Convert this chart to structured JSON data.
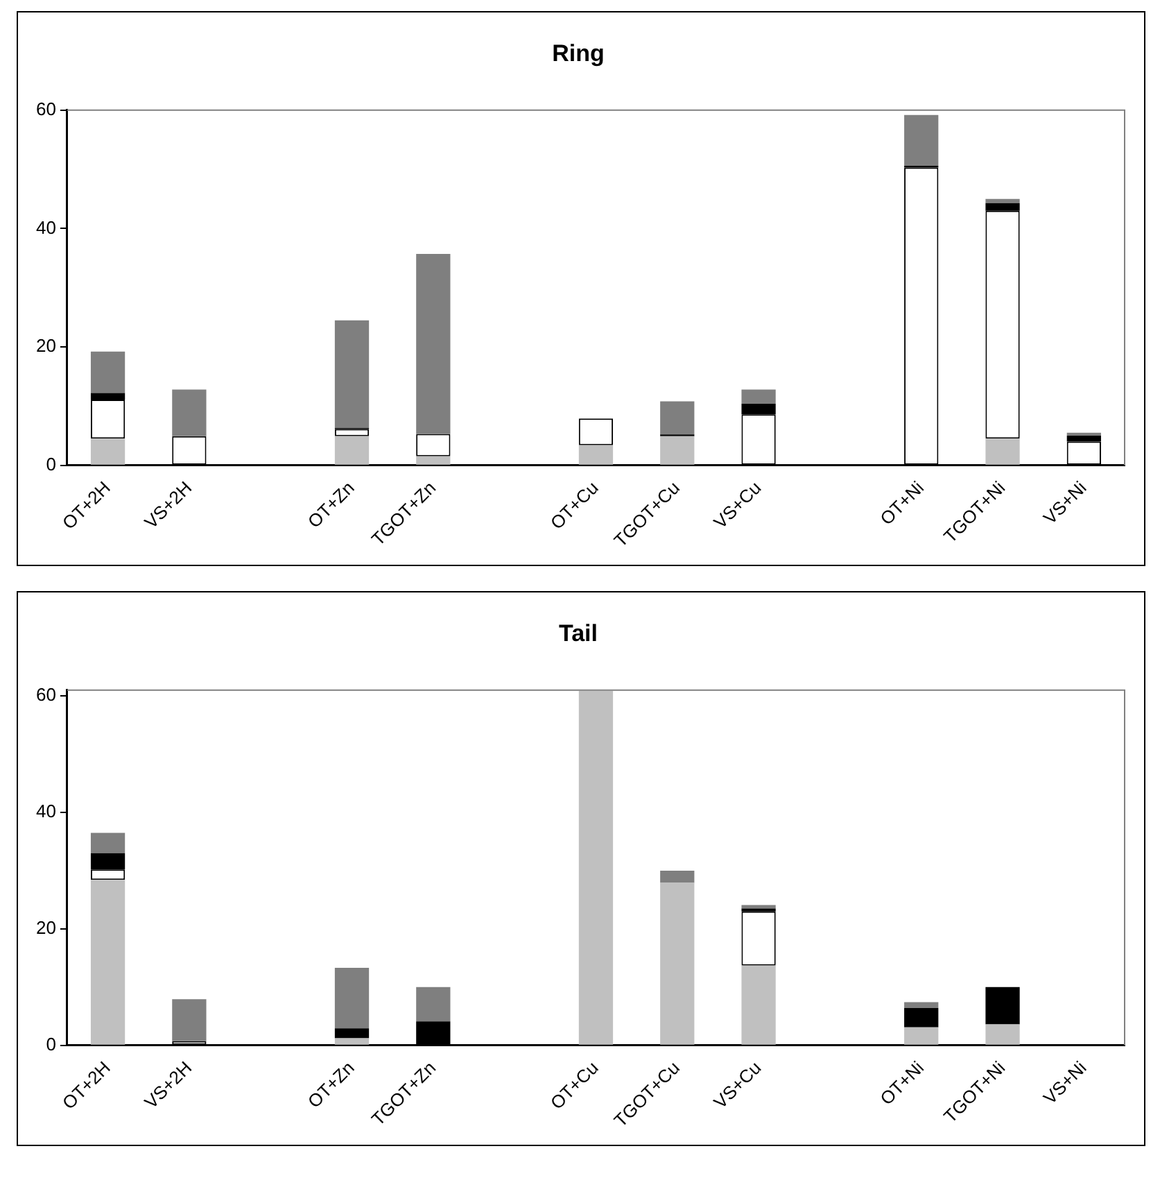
{
  "chart_data": [
    {
      "type": "bar",
      "title": "Ring",
      "stacked": true,
      "grid": false,
      "legend": false,
      "categories": [
        "OT+2H",
        "VS+2H",
        null,
        "OT+Zn",
        "TGOT+Zn",
        null,
        "OT+Cu",
        "TGOT+Cu",
        "VS+Cu",
        null,
        "OT+Ni",
        "TGOT+Ni",
        "VS+Ni"
      ],
      "ylim": [
        0,
        60
      ],
      "yticks": [
        0,
        20,
        40,
        60
      ],
      "series": [
        {
          "color": "#c0c0c0",
          "values": [
            4.5,
            null,
            null,
            4.9,
            1.5,
            null,
            3.4,
            4.9,
            null,
            null,
            null,
            4.5,
            null
          ]
        },
        {
          "color": "#ffffff",
          "values": [
            6.6,
            4.9,
            null,
            1.2,
            3.8,
            null,
            4.5,
            null,
            8.6,
            null,
            50.3,
            38.5,
            4.0
          ]
        },
        {
          "color": "#000000",
          "values": [
            1.1,
            null,
            null,
            0.2,
            null,
            null,
            null,
            0.3,
            1.8,
            null,
            0.3,
            1.3,
            1.0
          ]
        },
        {
          "color": "#7f7f7f",
          "values": [
            7.0,
            7.9,
            null,
            18.2,
            30.4,
            null,
            null,
            5.6,
            2.4,
            null,
            8.6,
            0.7,
            0.5
          ]
        }
      ]
    },
    {
      "type": "bar",
      "title": "Tail",
      "stacked": true,
      "grid": false,
      "legend": false,
      "categories": [
        "OT+2H",
        "VS+2H",
        null,
        "OT+Zn",
        "TGOT+Zn",
        null,
        "OT+Cu",
        "TGOT+Cu",
        "VS+Cu",
        null,
        "OT+Ni",
        "TGOT+Ni",
        "VS+Ni"
      ],
      "ylim": [
        0,
        61
      ],
      "yticks": [
        0,
        20,
        40,
        60
      ],
      "series": [
        {
          "color": "#c0c0c0",
          "values": [
            28.4,
            null,
            null,
            1.2,
            null,
            null,
            60.9,
            27.9,
            13.7,
            null,
            3.1,
            3.6,
            null
          ]
        },
        {
          "color": "#ffffff",
          "values": [
            1.8,
            0.7,
            null,
            null,
            null,
            null,
            null,
            null,
            9.3,
            null,
            null,
            null,
            null
          ]
        },
        {
          "color": "#000000",
          "values": [
            2.8,
            null,
            null,
            1.7,
            4.1,
            null,
            null,
            null,
            0.5,
            null,
            3.3,
            6.4,
            null
          ]
        },
        {
          "color": "#7f7f7f",
          "values": [
            3.5,
            7.2,
            null,
            10.4,
            5.9,
            null,
            null,
            2.1,
            0.6,
            null,
            1.0,
            null,
            null
          ]
        }
      ]
    }
  ]
}
